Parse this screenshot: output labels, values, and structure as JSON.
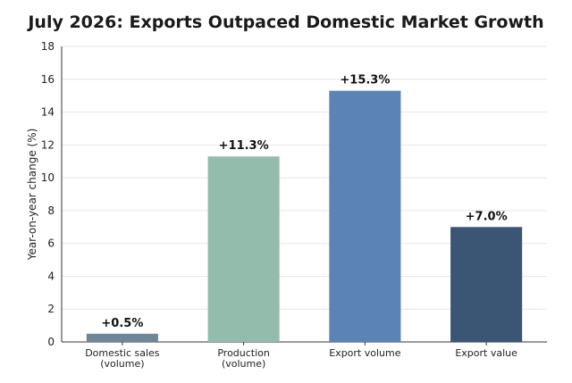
{
  "chart_data": {
    "type": "bar",
    "title": "July 2026: Exports Outpaced Domestic Market Growth",
    "ylabel": "Year-on-year change (%)",
    "xlabel": "",
    "ylim": [
      0,
      18
    ],
    "yticks": [
      0,
      2,
      4,
      6,
      8,
      10,
      12,
      14,
      16,
      18
    ],
    "grid": "horizontal",
    "categories": [
      [
        "Domestic sales",
        "(volume)"
      ],
      [
        "Production",
        "(volume)"
      ],
      [
        "Export volume"
      ],
      [
        "Export value"
      ]
    ],
    "values": [
      0.5,
      11.3,
      15.3,
      7.0
    ],
    "data_labels": [
      "+0.5%",
      "+11.3%",
      "+15.3%",
      "+7.0%"
    ],
    "colors": [
      "#6f8598",
      "#94bcad",
      "#5b84b5",
      "#3b5575"
    ]
  }
}
